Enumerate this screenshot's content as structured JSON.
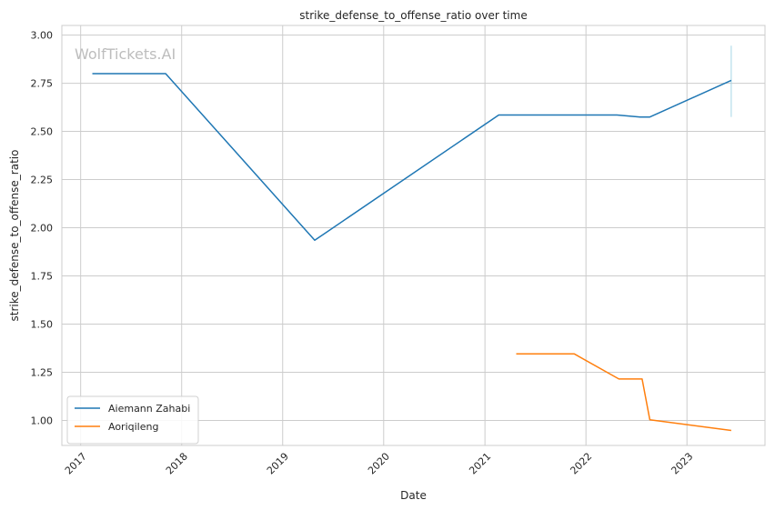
{
  "chart_data": {
    "type": "line",
    "title": "strike_defense_to_offense_ratio over time",
    "xlabel": "Date",
    "ylabel": "strike_defense_to_offense_ratio",
    "watermark": "WolfTickets.AI",
    "x_ticks": [
      "2017",
      "2018",
      "2019",
      "2020",
      "2021",
      "2022",
      "2023"
    ],
    "y_ticks": [
      "1.00",
      "1.25",
      "1.50",
      "1.75",
      "2.00",
      "2.25",
      "2.50",
      "2.75",
      "3.00"
    ],
    "xlim": [
      "2016-10-25",
      "2023-10-10"
    ],
    "ylim": [
      0.87,
      3.05
    ],
    "grid": true,
    "legend_position": "lower-left",
    "series": [
      {
        "name": "Aiemann Zahabi",
        "color": "#1f77b4",
        "points": [
          {
            "x": "2017-02-12",
            "y": 2.8
          },
          {
            "x": "2017-11-04",
            "y": 2.8
          },
          {
            "x": "2019-04-27",
            "y": 1.935
          },
          {
            "x": "2021-02-20",
            "y": 2.585
          },
          {
            "x": "2022-04-23",
            "y": 2.585
          },
          {
            "x": "2022-07-16",
            "y": 2.575
          },
          {
            "x": "2022-08-20",
            "y": 2.575
          },
          {
            "x": "2023-06-10",
            "y": 2.765
          }
        ],
        "error_bar": {
          "x": "2023-06-10",
          "low": 2.575,
          "high": 2.945,
          "color": "#a6d6e6"
        }
      },
      {
        "name": "Aoriqileng",
        "color": "#ff7f0e",
        "points": [
          {
            "x": "2021-04-24",
            "y": 1.345
          },
          {
            "x": "2021-11-20",
            "y": 1.345
          },
          {
            "x": "2022-04-30",
            "y": 1.215
          },
          {
            "x": "2022-07-23",
            "y": 1.215
          },
          {
            "x": "2022-08-20",
            "y": 1.003
          },
          {
            "x": "2023-06-10",
            "y": 0.948
          }
        ]
      }
    ]
  }
}
